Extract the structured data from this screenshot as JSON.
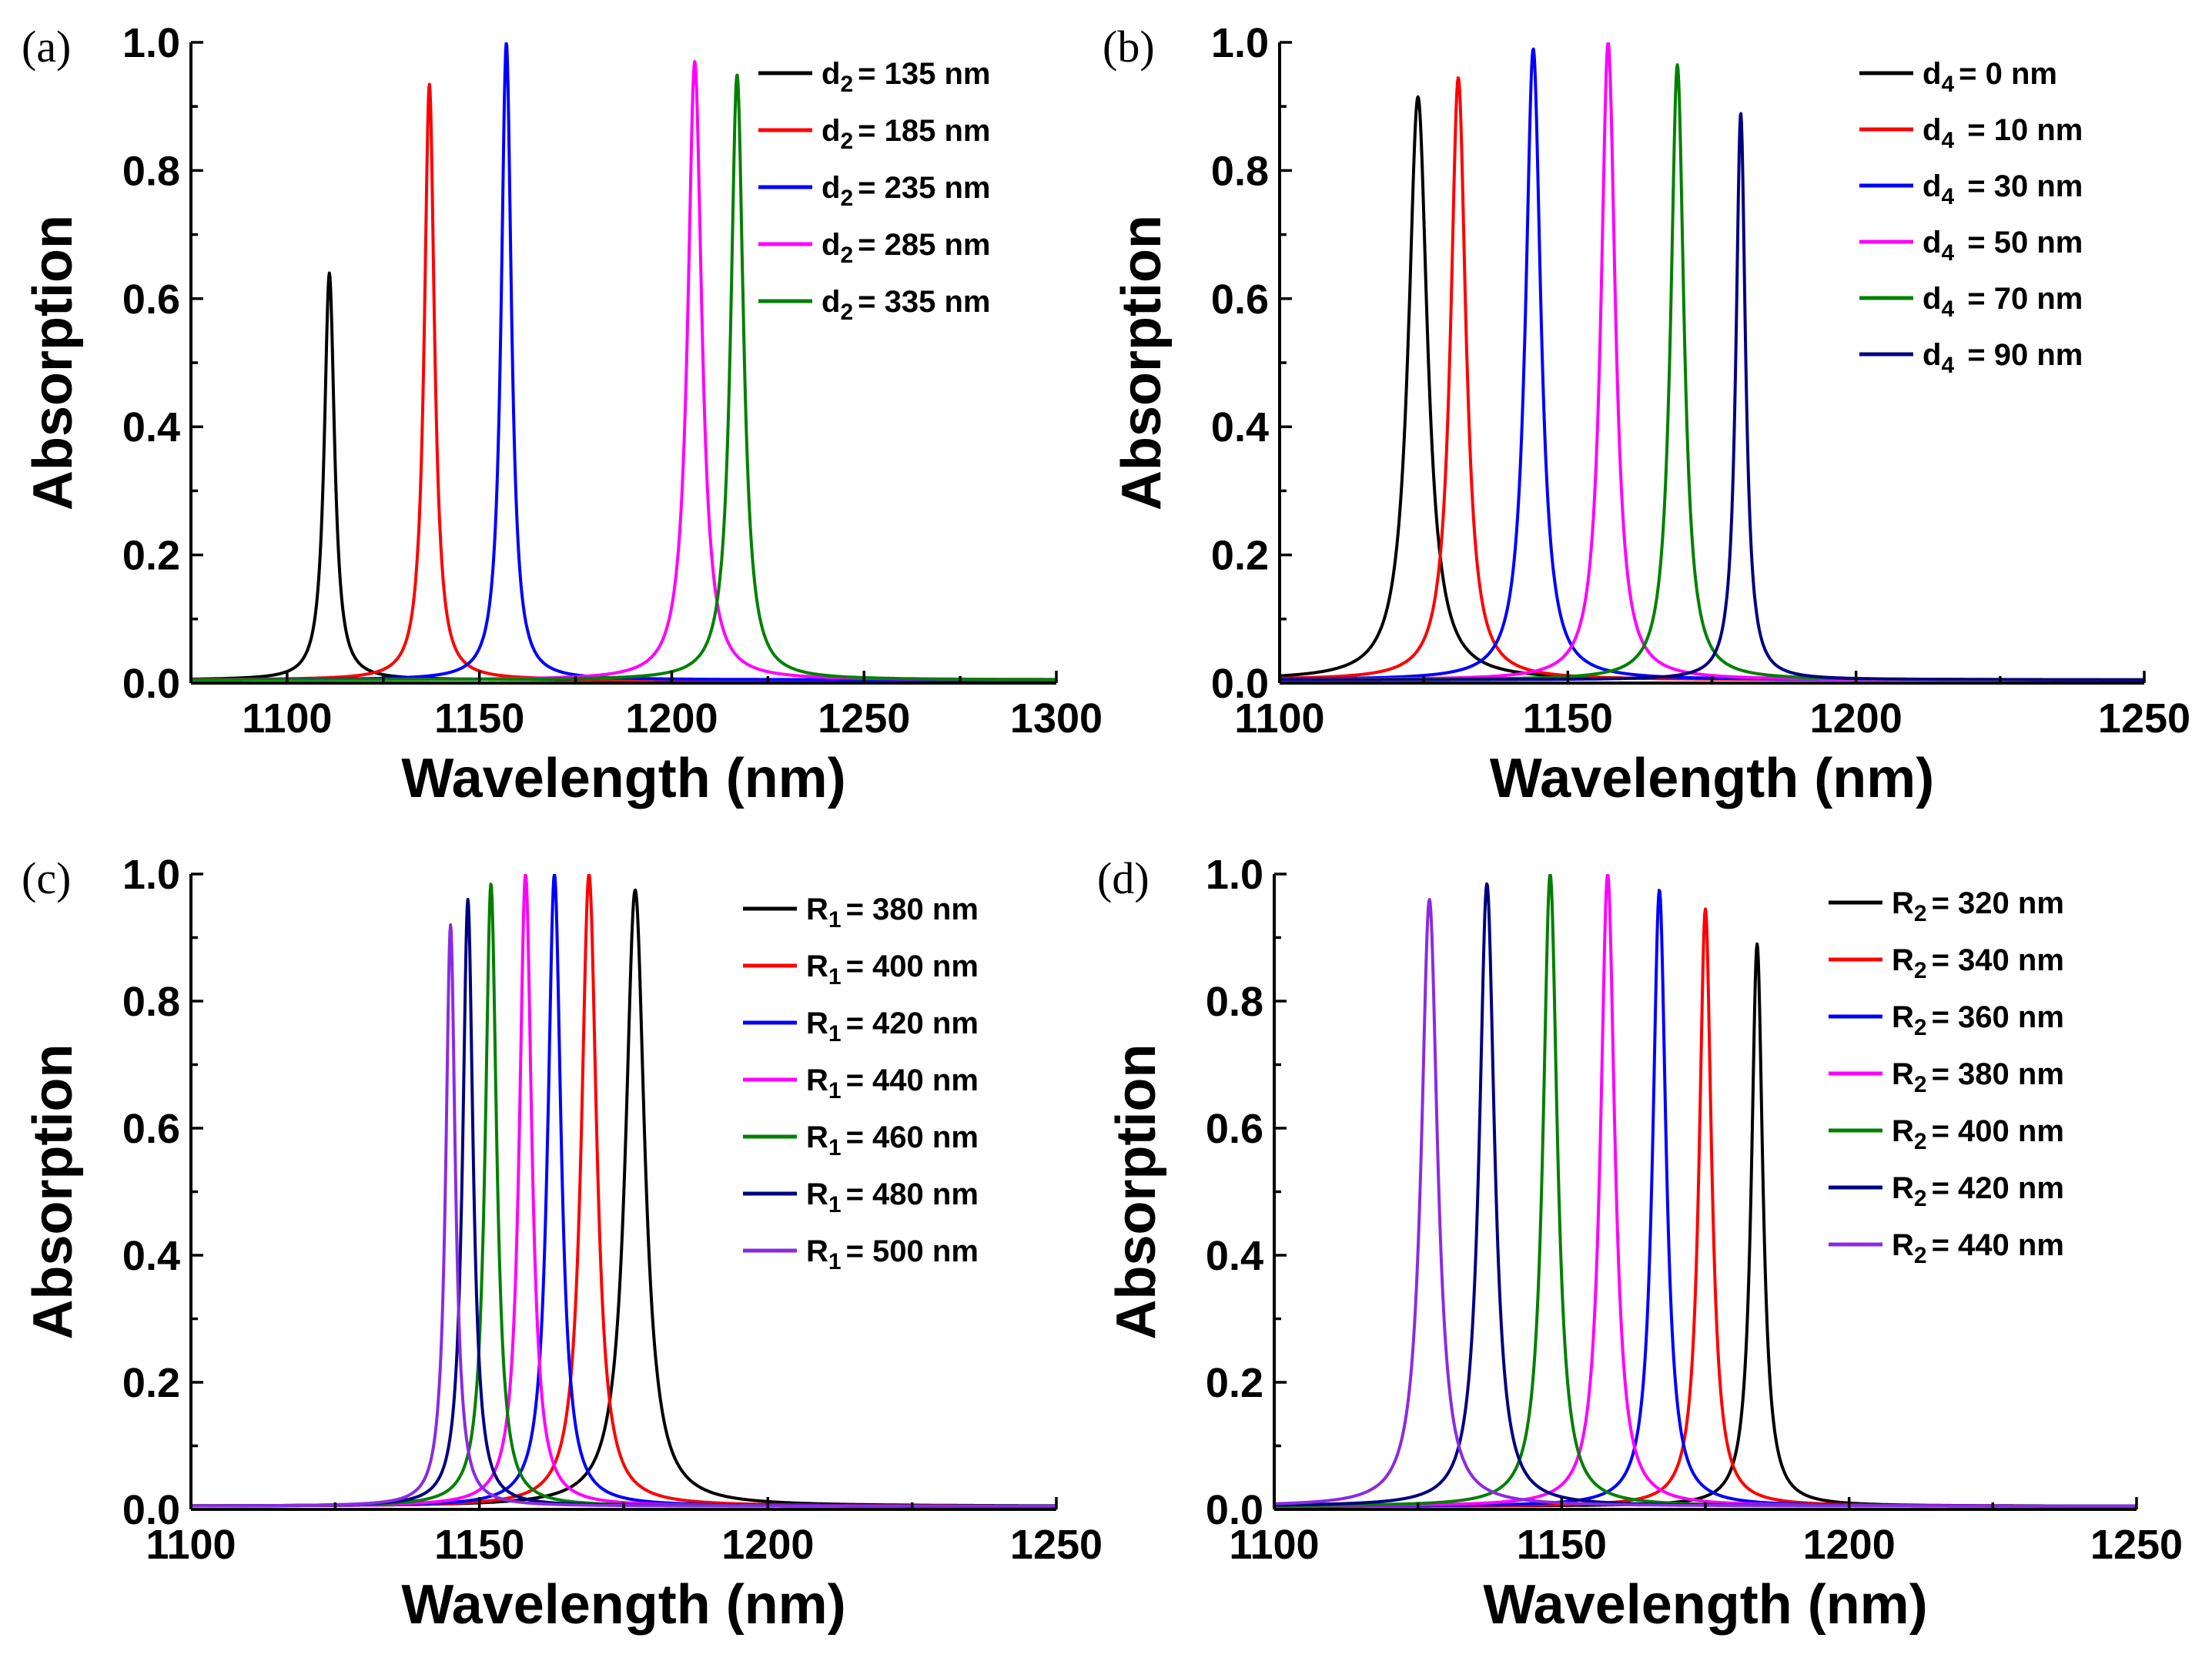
{
  "chart_data": [
    {
      "type": "line",
      "panel": "(a)",
      "xlabel": "Wavelength (nm)",
      "ylabel": "Absorption",
      "xlim": [
        1075,
        1300
      ],
      "ylim": [
        0,
        1.0
      ],
      "xticks": [
        1100,
        1150,
        1200,
        1250,
        1300
      ],
      "yticks": [
        0.0,
        0.2,
        0.4,
        0.6,
        0.8,
        1.0
      ],
      "legend_position": "top-right",
      "legend_var": "d",
      "legend_sub": "2",
      "series": [
        {
          "name": "d2 = 135 nm",
          "label_value": "= 135 nm",
          "color": "#000000",
          "peak_x": 1111,
          "peak_y": 0.64,
          "width": 1.6,
          "baseline": 0.005
        },
        {
          "name": "d2 = 185 nm",
          "label_value": "= 185 nm",
          "color": "#ff0000",
          "peak_x": 1137,
          "peak_y": 0.935,
          "width": 1.6,
          "baseline": 0.005
        },
        {
          "name": "d2 = 235 nm",
          "label_value": "= 235 nm",
          "color": "#0000ff",
          "peak_x": 1157,
          "peak_y": 1.0,
          "width": 1.6,
          "baseline": 0.005
        },
        {
          "name": "d2 = 285 nm",
          "label_value": "= 285 nm",
          "color": "#ff00ff",
          "peak_x": 1206,
          "peak_y": 0.97,
          "width": 2.2,
          "baseline": 0.005
        },
        {
          "name": "d2 = 335 nm",
          "label_value": "= 335 nm",
          "color": "#008000",
          "peak_x": 1217,
          "peak_y": 0.95,
          "width": 2.0,
          "baseline": 0.005
        }
      ]
    },
    {
      "type": "line",
      "panel": "(b)",
      "xlabel": "Wavelength (nm)",
      "ylabel": "Absorption",
      "xlim": [
        1100,
        1250
      ],
      "ylim": [
        0,
        1.0
      ],
      "xticks": [
        1100,
        1150,
        1200,
        1250
      ],
      "yticks": [
        0.0,
        0.2,
        0.4,
        0.6,
        0.8,
        1.0
      ],
      "legend_position": "top-right",
      "legend_var": "d",
      "legend_sub": "4",
      "series": [
        {
          "name": "d4 = 0 nm",
          "label_value": "= 0 nm",
          "color": "#000000",
          "peak_x": 1124,
          "peak_y": 0.915,
          "width": 2.0,
          "baseline": 0.005
        },
        {
          "name": "d4 = 10 nm",
          "label_value": " = 10 nm",
          "color": "#ff0000",
          "peak_x": 1131,
          "peak_y": 0.945,
          "width": 1.6,
          "baseline": 0.005
        },
        {
          "name": "d4 = 30 nm",
          "label_value": " = 30 nm",
          "color": "#0000ff",
          "peak_x": 1144,
          "peak_y": 0.99,
          "width": 1.6,
          "baseline": 0.005
        },
        {
          "name": "d4 = 50 nm",
          "label_value": " = 50 nm",
          "color": "#ff00ff",
          "peak_x": 1157,
          "peak_y": 1.0,
          "width": 1.5,
          "baseline": 0.005
        },
        {
          "name": "d4 = 70 nm",
          "label_value": " = 70 nm",
          "color": "#008000",
          "peak_x": 1169,
          "peak_y": 0.965,
          "width": 1.4,
          "baseline": 0.005
        },
        {
          "name": "d4 = 90 nm",
          "label_value": " = 90 nm",
          "color": "#000080",
          "peak_x": 1180,
          "peak_y": 0.89,
          "width": 1.0,
          "baseline": 0.005
        }
      ]
    },
    {
      "type": "line",
      "panel": "(c)",
      "xlabel": "Wavelength (nm)",
      "ylabel": "Absorption",
      "xlim": [
        1100,
        1250
      ],
      "ylim": [
        0,
        1.0
      ],
      "xticks": [
        1100,
        1150,
        1200,
        1250
      ],
      "yticks": [
        0.0,
        0.2,
        0.4,
        0.6,
        0.8,
        1.0
      ],
      "legend_position": "top-right",
      "legend_var": "R",
      "legend_sub": "1",
      "series": [
        {
          "name": "R1 = 380 nm",
          "label_value": "= 380 nm",
          "color": "#000000",
          "peak_x": 1177,
          "peak_y": 0.975,
          "width": 2.0,
          "baseline": 0.005
        },
        {
          "name": "R1 = 400 nm",
          "label_value": "= 400 nm",
          "color": "#ff0000",
          "peak_x": 1169,
          "peak_y": 1.0,
          "width": 1.6,
          "baseline": 0.005
        },
        {
          "name": "R1 = 420 nm",
          "label_value": "= 420 nm",
          "color": "#0000ff",
          "peak_x": 1163,
          "peak_y": 1.0,
          "width": 1.4,
          "baseline": 0.005
        },
        {
          "name": "R1 = 440 nm",
          "label_value": "= 440 nm",
          "color": "#ff00ff",
          "peak_x": 1158,
          "peak_y": 1.0,
          "width": 1.3,
          "baseline": 0.005
        },
        {
          "name": "R1 = 460 nm",
          "label_value": "= 460 nm",
          "color": "#008000",
          "peak_x": 1152,
          "peak_y": 0.985,
          "width": 1.2,
          "baseline": 0.005
        },
        {
          "name": "R1 = 480 nm",
          "label_value": "= 480 nm",
          "color": "#000080",
          "peak_x": 1148,
          "peak_y": 0.96,
          "width": 1.1,
          "baseline": 0.005
        },
        {
          "name": "R1 = 500 nm",
          "label_value": "= 500 nm",
          "color": "#8a2be2",
          "peak_x": 1145,
          "peak_y": 0.92,
          "width": 1.0,
          "baseline": 0.005
        }
      ]
    },
    {
      "type": "line",
      "panel": "(d)",
      "xlabel": "Wavelength (nm)",
      "ylabel": "Absorption",
      "xlim": [
        1100,
        1250
      ],
      "ylim": [
        0,
        1.0
      ],
      "xticks": [
        1100,
        1150,
        1200,
        1250
      ],
      "yticks": [
        0.0,
        0.2,
        0.4,
        0.6,
        0.8,
        1.0
      ],
      "legend_position": "top-right",
      "legend_var": "R",
      "legend_sub": "2",
      "series": [
        {
          "name": "R2 = 320 nm",
          "label_value": "= 320 nm",
          "color": "#000000",
          "peak_x": 1184,
          "peak_y": 0.89,
          "width": 1.2,
          "baseline": 0.005
        },
        {
          "name": "R2 = 340 nm",
          "label_value": "= 340 nm",
          "color": "#ff0000",
          "peak_x": 1175,
          "peak_y": 0.945,
          "width": 1.3,
          "baseline": 0.005
        },
        {
          "name": "R2 = 360 nm",
          "label_value": "= 360 nm",
          "color": "#0000ff",
          "peak_x": 1167,
          "peak_y": 0.975,
          "width": 1.4,
          "baseline": 0.005
        },
        {
          "name": "R2 = 380 nm",
          "label_value": "= 380 nm",
          "color": "#ff00ff",
          "peak_x": 1158,
          "peak_y": 1.0,
          "width": 1.5,
          "baseline": 0.005
        },
        {
          "name": "R2 = 400 nm",
          "label_value": "= 400 nm",
          "color": "#008000",
          "peak_x": 1148,
          "peak_y": 1.0,
          "width": 1.5,
          "baseline": 0.005
        },
        {
          "name": "R2 = 420 nm",
          "label_value": "= 420 nm",
          "color": "#000080",
          "peak_x": 1137,
          "peak_y": 0.985,
          "width": 1.6,
          "baseline": 0.005
        },
        {
          "name": "R2 = 440 nm",
          "label_value": "= 440 nm",
          "color": "#8a2be2",
          "peak_x": 1127,
          "peak_y": 0.96,
          "width": 1.7,
          "baseline": 0.005
        }
      ]
    }
  ]
}
